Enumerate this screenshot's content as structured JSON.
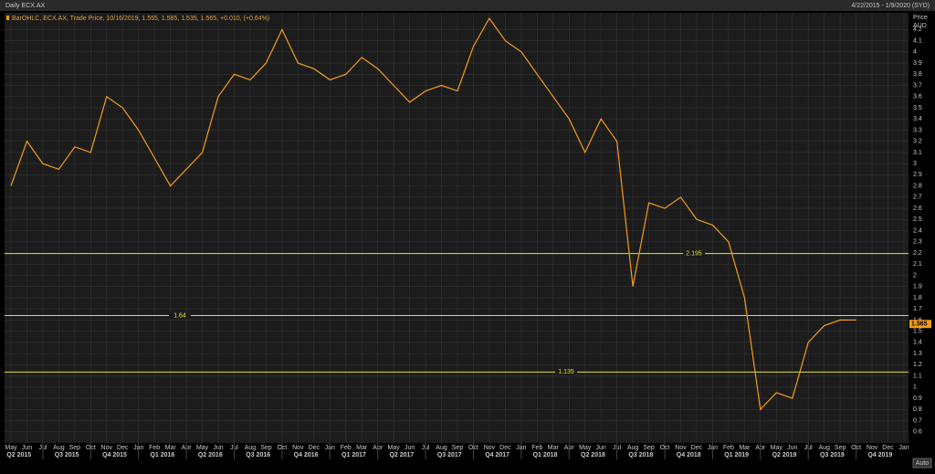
{
  "header": {
    "title": "Daily ECX.AX",
    "range": "4/22/2015 - 1/9/2020 (SYD)"
  },
  "chart_data": {
    "type": "line",
    "legend_text": "BarOHLC, ECX.AX, Trade Price, 10/16/2019, 1.555, 1.585, 1.535, 1.565, +0.010, (+0.64%)",
    "y_axis_title": "Price",
    "y_axis_unit": "AUD",
    "last_price": 1.565,
    "categories": [
      "May",
      "Jun",
      "Jul",
      "Aug",
      "Sep",
      "Oct",
      "Nov",
      "Dec",
      "Jan",
      "Feb",
      "Mar",
      "Apr",
      "May",
      "Jun",
      "Jul",
      "Aug",
      "Sep",
      "Oct",
      "Nov",
      "Dec",
      "Jan",
      "Feb",
      "Mar",
      "Apr",
      "May",
      "Jun",
      "Jul",
      "Aug",
      "Sep",
      "Oct",
      "Nov",
      "Dec",
      "Jan",
      "Feb",
      "Mar",
      "Apr",
      "May",
      "Jun",
      "Jul",
      "Aug",
      "Sep",
      "Oct",
      "Nov",
      "Dec",
      "Jan",
      "Feb",
      "Mar",
      "Apr",
      "May",
      "Jun",
      "Jul",
      "Aug",
      "Sep",
      "Oct",
      "Nov",
      "Dec",
      "Jan"
    ],
    "quarters": [
      "Q2 2015",
      "Q3 2015",
      "Q4 2015",
      "Q1 2016",
      "Q2 2016",
      "Q3 2016",
      "Q4 2016",
      "Q1 2017",
      "Q2 2017",
      "Q3 2017",
      "Q4 2017",
      "Q1 2018",
      "Q2 2018",
      "Q3 2018",
      "Q4 2018",
      "Q1 2019",
      "Q2 2019",
      "Q3 2019",
      "Q4 2019"
    ],
    "series": [
      {
        "name": "ECX.AX",
        "color": "#f39c1f",
        "values": [
          2.8,
          3.2,
          3.0,
          2.95,
          3.15,
          3.1,
          3.6,
          3.5,
          3.3,
          3.05,
          2.8,
          2.95,
          3.1,
          3.6,
          3.8,
          3.75,
          3.9,
          4.2,
          3.9,
          3.85,
          3.75,
          3.8,
          3.95,
          3.85,
          3.7,
          3.55,
          3.65,
          3.7,
          3.65,
          4.05,
          4.3,
          4.1,
          4.0,
          3.8,
          3.6,
          3.4,
          3.1,
          3.4,
          3.2,
          1.9,
          2.65,
          2.6,
          2.7,
          2.5,
          2.45,
          2.3,
          1.8,
          0.8,
          0.95,
          0.9,
          1.4,
          1.55,
          1.6,
          1.6,
          null,
          null,
          null
        ]
      }
    ],
    "hlines": [
      {
        "value": 2.195,
        "label": "2.195"
      },
      {
        "value": 1.64,
        "label": "1.64"
      },
      {
        "value": 1.135,
        "label": "1.135"
      }
    ],
    "ylim": [
      0.5,
      4.35
    ],
    "yticks": [
      0.6,
      0.7,
      0.8,
      0.9,
      1,
      1.1,
      1.2,
      1.3,
      1.4,
      1.5,
      1.6,
      1.7,
      1.8,
      1.9,
      2,
      2.1,
      2.2,
      2.3,
      2.4,
      2.5,
      2.6,
      2.7,
      2.8,
      2.9,
      3,
      3.1,
      3.2,
      3.3,
      3.4,
      3.5,
      3.6,
      3.7,
      3.8,
      3.9,
      4,
      4.1,
      4.2
    ],
    "grid": true,
    "auto_button": "Auto"
  }
}
